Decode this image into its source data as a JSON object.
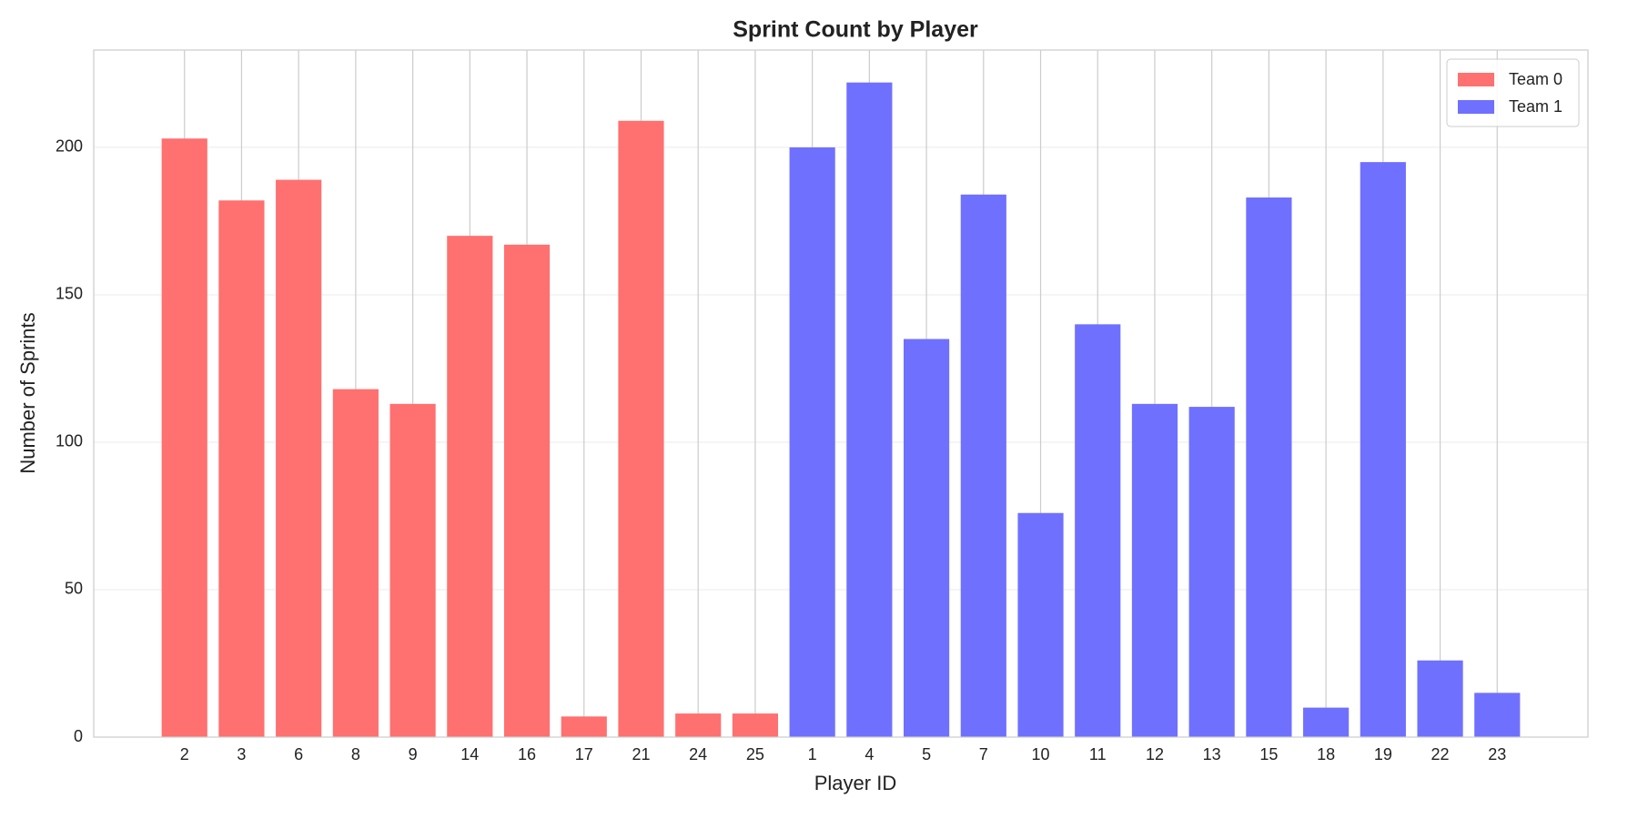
{
  "chart_data": {
    "type": "bar",
    "title": "Sprint Count by Player",
    "xlabel": "Player ID",
    "ylabel": "Number of Sprints",
    "categories": [
      "2",
      "3",
      "6",
      "8",
      "9",
      "14",
      "16",
      "17",
      "21",
      "24",
      "25",
      "1",
      "4",
      "5",
      "7",
      "10",
      "11",
      "12",
      "13",
      "15",
      "18",
      "19",
      "22",
      "23"
    ],
    "series": [
      {
        "name": "Team 0",
        "color": "#ff7070",
        "values": [
          203,
          182,
          189,
          118,
          113,
          170,
          167,
          7,
          209,
          8,
          8,
          null,
          null,
          null,
          null,
          null,
          null,
          null,
          null,
          null,
          null,
          null,
          null,
          null
        ]
      },
      {
        "name": "Team 1",
        "color": "#7070ff",
        "values": [
          null,
          null,
          null,
          null,
          null,
          null,
          null,
          null,
          null,
          null,
          null,
          200,
          222,
          135,
          184,
          76,
          140,
          113,
          112,
          183,
          10,
          195,
          26,
          15
        ]
      }
    ],
    "ylim": [
      0,
      233
    ],
    "yticks": [
      0,
      50,
      100,
      150,
      200
    ],
    "grid": true,
    "legend": "upper right"
  }
}
